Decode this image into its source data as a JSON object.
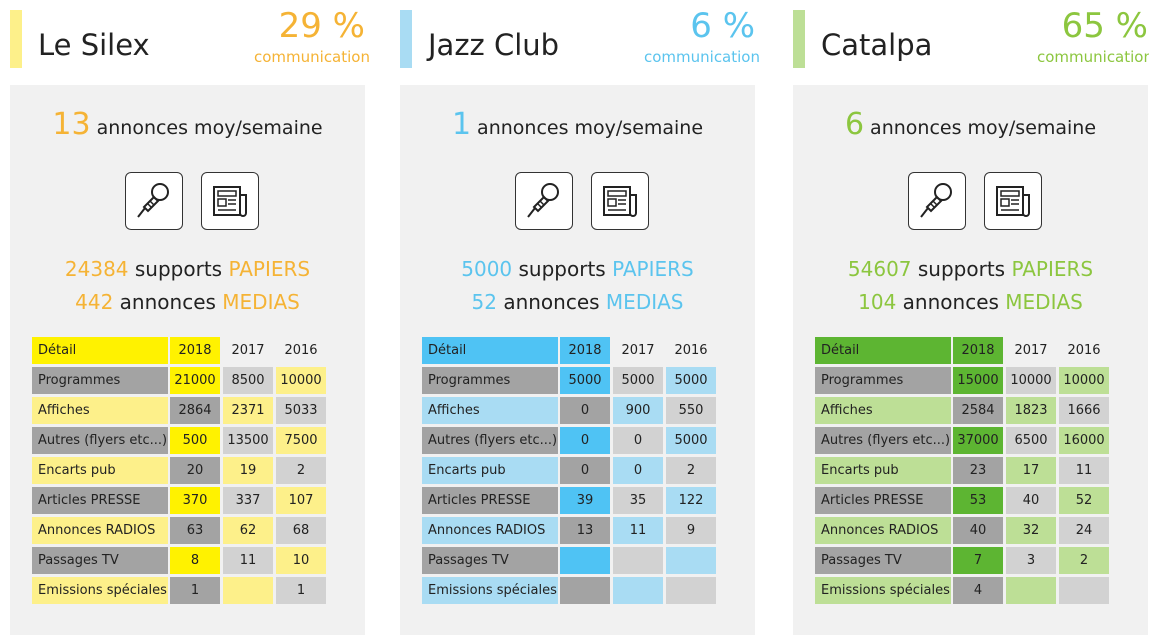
{
  "panels": [
    {
      "name": "Le Silex",
      "percent": "29 %",
      "percent_label": "communication",
      "colors": {
        "accent": "#f5b335",
        "strong": "#fff200",
        "light": "#fdf08a"
      },
      "weekly_count": "13",
      "weekly_label": "annonces moy/semaine",
      "paper_count": "24384",
      "paper_text": "supports",
      "paper_highlight": "PAPIERS",
      "media_count": "442",
      "media_text": "annonces",
      "media_highlight": "MEDIAS",
      "table": {
        "header": [
          "Détail",
          "2018",
          "2017",
          "2016"
        ],
        "rows": [
          [
            "Programmes",
            "21000",
            "8500",
            "10000"
          ],
          [
            "Affiches",
            "2864",
            "2371",
            "5033"
          ],
          [
            "Autres (flyers etc...)",
            "500",
            "13500",
            "7500"
          ],
          [
            "Encarts pub",
            "20",
            "19",
            "2"
          ],
          [
            "Articles PRESSE",
            "370",
            "337",
            "107"
          ],
          [
            "Annonces RADIOS",
            "63",
            "62",
            "68"
          ],
          [
            "Passages TV",
            "8",
            "11",
            "10"
          ],
          [
            "Emissions spéciales",
            "1",
            null,
            "1"
          ]
        ]
      }
    },
    {
      "name": "Jazz Club",
      "percent": "6 %",
      "percent_label": "communication",
      "colors": {
        "accent": "#5bc4ee",
        "strong": "#4fc3f4",
        "light": "#a9dcf3"
      },
      "weekly_count": "1",
      "weekly_label": "annonces moy/semaine",
      "paper_count": "5000",
      "paper_text": "supports",
      "paper_highlight": "PAPIERS",
      "media_count": "52",
      "media_text": "annonces",
      "media_highlight": "MEDIAS",
      "table": {
        "header": [
          "Détail",
          "2018",
          "2017",
          "2016"
        ],
        "rows": [
          [
            "Programmes",
            "5000",
            "5000",
            "5000"
          ],
          [
            "Affiches",
            "0",
            "900",
            "550"
          ],
          [
            "Autres (flyers etc...)",
            "0",
            "0",
            "5000"
          ],
          [
            "Encarts pub",
            "0",
            "0",
            "2"
          ],
          [
            "Articles PRESSE",
            "39",
            "35",
            "122"
          ],
          [
            "Annonces RADIOS",
            "13",
            "11",
            "9"
          ],
          [
            "Passages TV",
            null,
            null,
            null
          ],
          [
            "Emissions spéciales",
            null,
            null,
            null
          ]
        ]
      }
    },
    {
      "name": "Catalpa",
      "percent": "65 %",
      "percent_label": "communication",
      "colors": {
        "accent": "#8cc63f",
        "strong": "#5db532",
        "light": "#bddf96"
      },
      "weekly_count": "6",
      "weekly_label": "annonces moy/semaine",
      "paper_count": "54607",
      "paper_text": "supports",
      "paper_highlight": "PAPIERS",
      "media_count": "104",
      "media_text": "annonces",
      "media_highlight": "MEDIAS",
      "table": {
        "header": [
          "Détail",
          "2018",
          "2017",
          "2016"
        ],
        "rows": [
          [
            "Programmes",
            "15000",
            "10000",
            "10000"
          ],
          [
            "Affiches",
            "2584",
            "1823",
            "1666"
          ],
          [
            "Autres (flyers etc...)",
            "37000",
            "6500",
            "16000"
          ],
          [
            "Encarts pub",
            "23",
            "17",
            "11"
          ],
          [
            "Articles PRESSE",
            "53",
            "40",
            "52"
          ],
          [
            "Annonces RADIOS",
            "40",
            "32",
            "24"
          ],
          [
            "Passages TV",
            "7",
            "3",
            "2"
          ],
          [
            "Emissions spéciales",
            "4",
            null,
            null
          ]
        ]
      }
    }
  ]
}
